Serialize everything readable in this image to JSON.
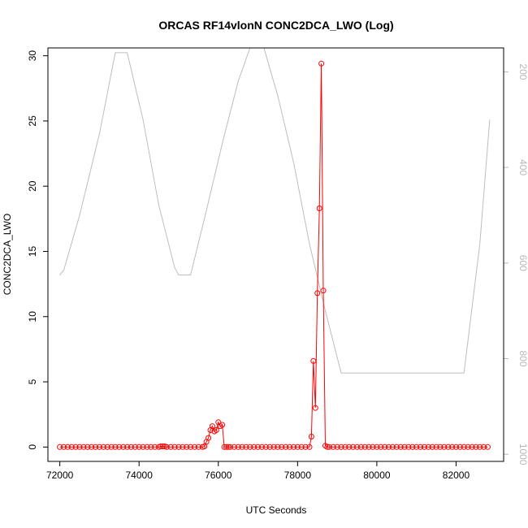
{
  "chart_data": {
    "type": "scatter",
    "title": "ORCAS RF14vlonN CONC2DCA_LWO (Log)",
    "xlabel": "UTC Seconds",
    "ylabel": "CONC2DCA_LWO",
    "xlim": [
      71700,
      83200
    ],
    "ylim": [
      -1.1,
      30.6
    ],
    "x_ticks": [
      72000,
      74000,
      76000,
      78000,
      80000,
      82000
    ],
    "x_tick_labels": [
      "72000",
      "74000",
      "76000",
      "78000",
      "80000",
      "82000"
    ],
    "y_ticks": [
      0,
      5,
      10,
      15,
      20,
      25,
      30
    ],
    "y_tick_labels": [
      "0",
      "5",
      "10",
      "15",
      "20",
      "25",
      "30"
    ],
    "y2_lim": [
      1015,
      150
    ],
    "y2_ticks": [
      200,
      400,
      600,
      800,
      1000
    ],
    "y2_tick_labels": [
      "200",
      "400",
      "600",
      "800",
      "1000"
    ],
    "series": [
      {
        "color": "#ff0000",
        "marker": "open-circle",
        "x": [
          72000,
          72100,
          72200,
          72300,
          72400,
          72500,
          72600,
          72700,
          72800,
          72900,
          73000,
          73100,
          73200,
          73300,
          73400,
          73500,
          73600,
          73700,
          73800,
          73900,
          74000,
          74100,
          74200,
          74300,
          74400,
          74500,
          74550,
          74600,
          74650,
          74700,
          74800,
          74900,
          75000,
          75100,
          75200,
          75300,
          75400,
          75500,
          75600,
          75650,
          75700,
          75750,
          75800,
          75850,
          75900,
          75950,
          76000,
          76050,
          76100,
          76150,
          76200,
          76250,
          76300,
          76400,
          76500,
          76600,
          76700,
          76800,
          76900,
          77000,
          77100,
          77200,
          77300,
          77400,
          77500,
          77600,
          77700,
          77800,
          77900,
          78000,
          78100,
          78200,
          78300,
          78350,
          78400,
          78450,
          78500,
          78550,
          78600,
          78650,
          78700,
          78750,
          78800,
          78900,
          79000,
          79100,
          79200,
          79300,
          79400,
          79500,
          79600,
          79700,
          79800,
          79900,
          80000,
          80100,
          80200,
          80300,
          80400,
          80500,
          80600,
          80700,
          80800,
          80900,
          81000,
          81100,
          81200,
          81300,
          81400,
          81500,
          81600,
          81700,
          81800,
          81900,
          82000,
          82100,
          82200,
          82300,
          82400,
          82500,
          82600,
          82700,
          82800
        ],
        "y": [
          0,
          0,
          0,
          0,
          0,
          0,
          0,
          0,
          0,
          0,
          0,
          0,
          0,
          0,
          0,
          0,
          0,
          0,
          0,
          0,
          0,
          0,
          0,
          0,
          0,
          0,
          0.05,
          0.05,
          0.05,
          0,
          0,
          0,
          0,
          0,
          0,
          0,
          0,
          0,
          0,
          0.05,
          0.4,
          0.7,
          1.3,
          1.6,
          1.2,
          1.3,
          1.9,
          1.6,
          1.7,
          0,
          0,
          0,
          0,
          0,
          0,
          0,
          0,
          0,
          0,
          0,
          0,
          0,
          0,
          0,
          0,
          0,
          0,
          0,
          0,
          0,
          0,
          0,
          0,
          0.8,
          6.6,
          3.0,
          11.8,
          18.3,
          29.4,
          12.0,
          0.1,
          0,
          0,
          0,
          0,
          0,
          0,
          0,
          0,
          0,
          0,
          0,
          0,
          0,
          0,
          0,
          0,
          0,
          0,
          0,
          0,
          0,
          0,
          0,
          0,
          0,
          0,
          0,
          0,
          0,
          0,
          0,
          0,
          0,
          0,
          0,
          0,
          0,
          0,
          0,
          0,
          0,
          0
        ]
      },
      {
        "color": "#bdbdbd",
        "axis": "right",
        "x": [
          72000,
          72100,
          72500,
          73000,
          73400,
          73700,
          74100,
          74500,
          74900,
          75000,
          75300,
          75700,
          76100,
          76500,
          76800,
          77150,
          77500,
          77900,
          78300,
          78700,
          79100,
          80000,
          81000,
          82000,
          82200,
          82600,
          82850
        ],
        "y": [
          625,
          615,
          500,
          330,
          160,
          160,
          300,
          480,
          610,
          625,
          625,
          490,
          350,
          220,
          150,
          150,
          250,
          390,
          560,
          700,
          830,
          830,
          830,
          830,
          830,
          560,
          300
        ]
      }
    ]
  }
}
